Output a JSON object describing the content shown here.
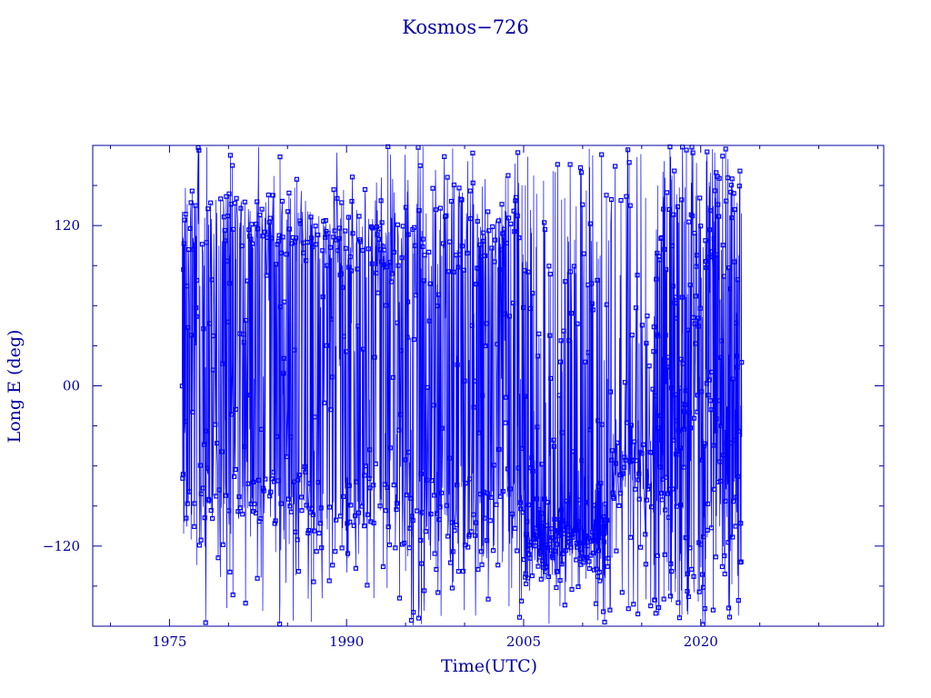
{
  "chart_data": {
    "type": "scatter",
    "title": "Kosmos−726",
    "xlabel": "Time(UTC)",
    "ylabel": "Long E (deg)",
    "xlim": [
      1968.5,
      2035.5
    ],
    "ylim": [
      -180,
      180
    ],
    "x_ticks": [
      1975,
      1990,
      2005,
      2020
    ],
    "x_tick_labels": [
      "1975",
      "1990",
      "2005",
      "2020"
    ],
    "y_ticks": [
      -120,
      0,
      120
    ],
    "y_tick_labels": [
      "−120",
      "00",
      "120"
    ],
    "grid": false,
    "legend": "none",
    "series": [
      {
        "color": "#0000ff",
        "marker": "square",
        "x_range": [
          1976.0,
          2023.5
        ],
        "dense_intervals": [
          [
            2005.0,
            2012.0
          ],
          [
            2016.0,
            2023.5
          ]
        ],
        "clusters": [
          {
            "x_range": [
              1976.0,
              2005.0
            ],
            "center": 115
          },
          {
            "x_range": [
              1976.0,
              2005.0
            ],
            "center": -85
          },
          {
            "x_range": [
              1988.0,
              2003.0
            ],
            "center": 100
          },
          {
            "x_range": [
              1994.0,
              2003.0
            ],
            "center": -115
          },
          {
            "x_range": [
              2005.0,
              2012.0
            ],
            "center": -120
          },
          {
            "x_range": [
              2012.5,
              2016.0
            ],
            "center": -60
          }
        ]
      }
    ],
    "colors": {
      "axis": "#0000a0",
      "series": "#0000ff"
    }
  }
}
